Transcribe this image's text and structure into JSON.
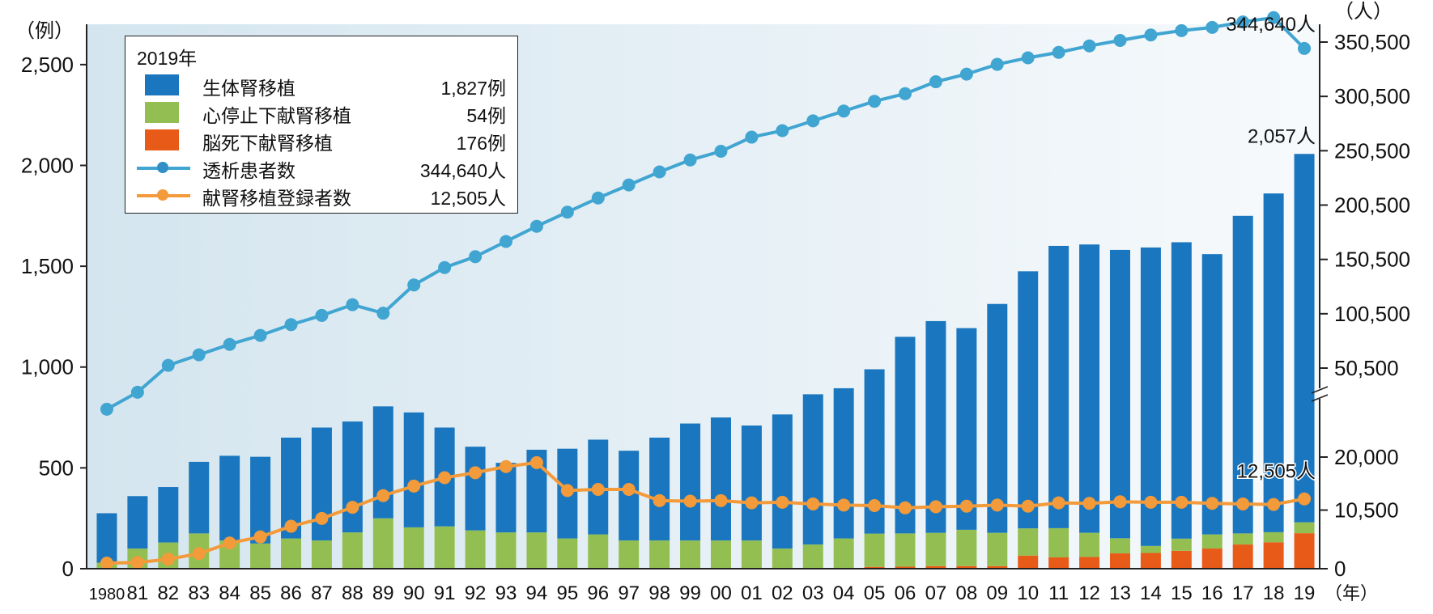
{
  "chart_data": {
    "type": "bar+line",
    "title": "",
    "legend": {
      "placement": "top-left",
      "title": "2019年",
      "entries": [
        {
          "label": "生体腎移植",
          "value": "1,827例",
          "kind": "bar",
          "color": "#1a77bf"
        },
        {
          "label": "心停止下献腎移植",
          "value": "54例",
          "kind": "bar",
          "color": "#93bf52"
        },
        {
          "label": "脳死下献腎移植",
          "value": "176例",
          "kind": "bar",
          "color": "#e85a17"
        },
        {
          "label": "透析患者数",
          "value": "344,640人",
          "kind": "line",
          "color": "#41a5d2"
        },
        {
          "label": "献腎移植登録者数",
          "value": "12,505人",
          "kind": "line",
          "color": "#f39a3a"
        }
      ]
    },
    "categories": [
      "1980",
      "81",
      "82",
      "83",
      "84",
      "85",
      "86",
      "87",
      "88",
      "89",
      "90",
      "91",
      "92",
      "93",
      "94",
      "95",
      "96",
      "97",
      "98",
      "99",
      "00",
      "01",
      "02",
      "03",
      "04",
      "05",
      "06",
      "07",
      "08",
      "09",
      "10",
      "11",
      "12",
      "13",
      "14",
      "15",
      "16",
      "17",
      "18",
      "19"
    ],
    "xlabel_unit": "（年）",
    "left_axis": {
      "unit": "（例）",
      "ylim": [
        0,
        2700
      ],
      "ticks": [
        0,
        500,
        1000,
        1500,
        2000,
        2500
      ],
      "tick_labels": [
        "0",
        "500",
        "1,000",
        "1,500",
        "2,000",
        "2,500"
      ]
    },
    "right_axis": {
      "unit": "（人）",
      "broken": true,
      "ticks": [
        0,
        10500,
        20000,
        50500,
        100500,
        150500,
        200500,
        250500,
        300500,
        350500
      ],
      "tick_labels": [
        "0",
        "10,500",
        "20,000",
        "50,500",
        "100,500",
        "150,500",
        "200,500",
        "250,500",
        "300,500",
        "350,500"
      ]
    },
    "series": [
      {
        "name": "脳死下献腎移植",
        "type": "bar",
        "axis": "left",
        "values": [
          0,
          0,
          0,
          0,
          0,
          0,
          0,
          0,
          0,
          0,
          0,
          0,
          0,
          0,
          0,
          0,
          0,
          0,
          0,
          0,
          0,
          0,
          0,
          0,
          0,
          9,
          10,
          13,
          13,
          13,
          65,
          56,
          58,
          76,
          78,
          89,
          100,
          120,
          131,
          176
        ]
      },
      {
        "name": "心停止下献腎移植",
        "type": "bar",
        "axis": "left",
        "values": [
          30,
          100,
          130,
          175,
          140,
          125,
          150,
          140,
          180,
          250,
          205,
          210,
          190,
          180,
          180,
          150,
          170,
          140,
          140,
          140,
          140,
          140,
          100,
          120,
          150,
          165,
          165,
          165,
          180,
          165,
          135,
          145,
          120,
          75,
          35,
          60,
          70,
          55,
          50,
          54
        ]
      },
      {
        "name": "生体腎移植",
        "type": "bar",
        "axis": "left",
        "values": [
          245,
          260,
          275,
          355,
          420,
          430,
          500,
          560,
          550,
          555,
          570,
          490,
          415,
          345,
          410,
          445,
          470,
          445,
          510,
          580,
          610,
          570,
          665,
          745,
          745,
          815,
          975,
          1050,
          1000,
          1135,
          1275,
          1400,
          1430,
          1430,
          1480,
          1470,
          1390,
          1575,
          1680,
          1827
        ]
      },
      {
        "name": "透析患者数",
        "type": "line",
        "axis": "right",
        "values": [
          36397,
          42223,
          53017,
          62715,
          72297,
          80553,
          90484,
          98939,
          108807,
          101000,
          127000,
          143000,
          153000,
          167000,
          181000,
          194000,
          207000,
          219000,
          231000,
          242000,
          250000,
          263000,
          269000,
          278000,
          287000,
          296000,
          303000,
          314000,
          321000,
          330000,
          336000,
          341000,
          347000,
          352000,
          357000,
          361000,
          364000,
          369000,
          373000,
          344640
        ]
      },
      {
        "name": "献腎移植登録者数",
        "type": "line",
        "axis": "right",
        "values": [
          1000,
          1100,
          1700,
          2700,
          4600,
          5700,
          7600,
          9000,
          11000,
          13100,
          14800,
          16300,
          17200,
          18300,
          19000,
          14000,
          14200,
          14200,
          12200,
          12100,
          12200,
          11800,
          11900,
          11600,
          11400,
          11300,
          10900,
          11100,
          11200,
          11400,
          11200,
          11800,
          11700,
          12000,
          11900,
          11900,
          11700,
          11600,
          11500,
          12505
        ]
      }
    ],
    "annotations": [
      {
        "text": "344,640人",
        "target": "透析患者数 2019"
      },
      {
        "text": "2,057人",
        "target": "total transplants 2019"
      },
      {
        "text": "12,505人",
        "target": "献腎移植登録者数 2019"
      }
    ],
    "grid": false
  },
  "legend_title": "2019年",
  "legend_entries": [
    {
      "label": "生体腎移植",
      "value": "1,827例"
    },
    {
      "label": "心停止下献腎移植",
      "value": "54例"
    },
    {
      "label": "脳死下献腎移植",
      "value": "176例"
    },
    {
      "label": "透析患者数",
      "value": "344,640人"
    },
    {
      "label": "献腎移植登録者数",
      "value": "12,505人"
    }
  ],
  "colors": {
    "living": "#1a77bf",
    "dcd": "#93bf52",
    "dbd": "#e85a17",
    "dialysis": "#41a5d2",
    "waitlist": "#f39a3a",
    "plot_bg_left": "#d6e6f0",
    "plot_bg_right": "#f6f9fb"
  }
}
